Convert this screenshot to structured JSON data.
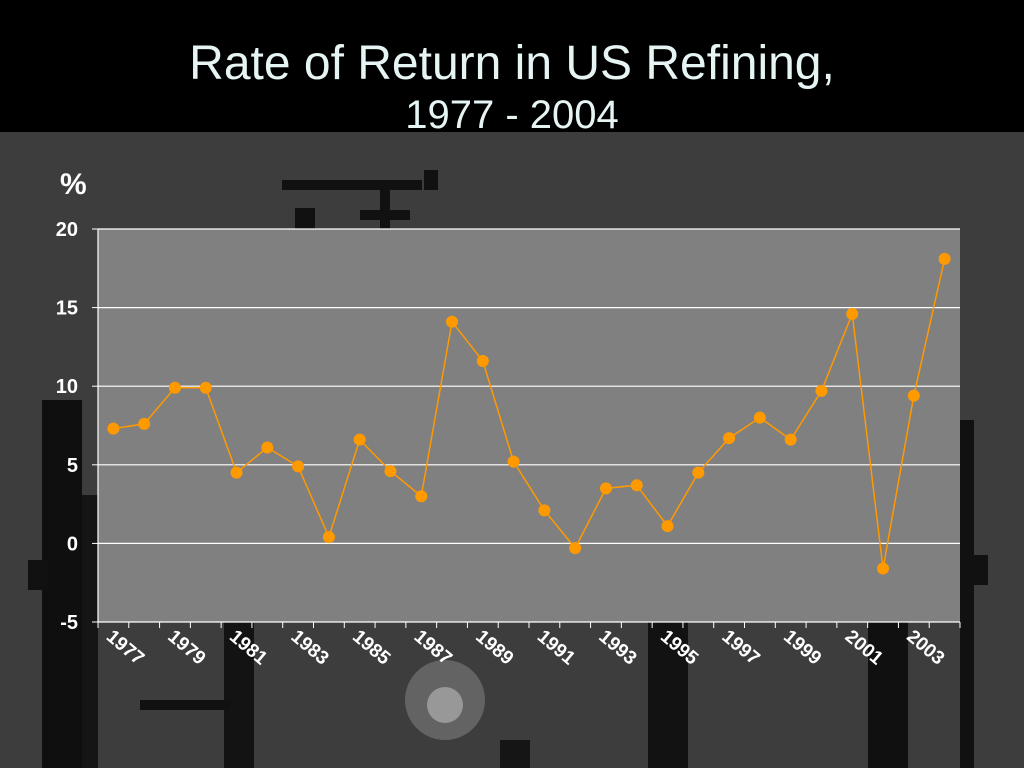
{
  "slide": {
    "title_line1": "Rate of Return in US Refining,",
    "title_line2": "1977 - 2004"
  },
  "colors": {
    "plot_bg": "#808080",
    "series": "#FF9900",
    "gridline": "#FFFFFF",
    "text": "#FFFFFF"
  },
  "chart_data": {
    "type": "line",
    "title": "",
    "ylabel": "%",
    "xlabel": "",
    "ylim": [
      -5,
      20
    ],
    "yticks": [
      -5,
      0,
      5,
      10,
      15,
      20
    ],
    "x": [
      1977,
      1978,
      1979,
      1980,
      1981,
      1982,
      1983,
      1984,
      1985,
      1986,
      1987,
      1988,
      1989,
      1990,
      1991,
      1992,
      1993,
      1994,
      1995,
      1996,
      1997,
      1998,
      1999,
      2000,
      2001,
      2002,
      2003,
      2004
    ],
    "xtick_labels": [
      "1977",
      "1979",
      "1981",
      "1983",
      "1985",
      "1987",
      "1989",
      "1991",
      "1993",
      "1995",
      "1997",
      "1999",
      "2001",
      "2003"
    ],
    "grid": true,
    "legend": "none",
    "series": [
      {
        "values": [
          7.3,
          7.6,
          9.9,
          9.9,
          4.5,
          6.1,
          4.9,
          0.4,
          6.6,
          4.6,
          3.0,
          14.1,
          11.6,
          5.2,
          2.1,
          -0.3,
          3.5,
          3.7,
          1.1,
          4.5,
          6.7,
          8.0,
          6.6,
          9.7,
          14.6,
          -1.6,
          9.4,
          18.1
        ]
      }
    ]
  }
}
